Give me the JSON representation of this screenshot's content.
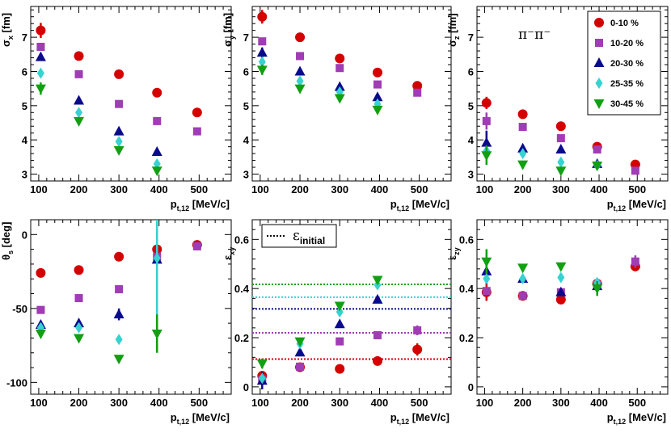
{
  "colors": {
    "0-10 %": "#d40000",
    "10-20 %": "#a03cb4",
    "20-30 %": "#0a0a8c",
    "25-35 %": "#37d2d2",
    "30-45 %": "#12a012"
  },
  "markers": {
    "0-10 %": "circle",
    "10-20 %": "square",
    "20-30 %": "triangle-up",
    "25-35 %": "diamond",
    "30-45 %": "triangle-down"
  },
  "legend": [
    "0-10 %",
    "10-20 %",
    "20-30 %",
    "25-35 %",
    "30-45 %"
  ],
  "annotation": "π⁻π⁻",
  "initial_legend": {
    "symbol": "ε",
    "sub": "initial"
  },
  "chart_data": [
    {
      "type": "scatter",
      "panel": "sigma_x",
      "ylabel": {
        "main": "σ",
        "sub": "x",
        "post": " [fm]"
      },
      "xlabel": {
        "main": "p",
        "sub": "t,12",
        "post": " [MeV/c]"
      },
      "xlim": [
        80,
        580
      ],
      "ylim": [
        2.8,
        7.9
      ],
      "xticks": [
        100,
        200,
        300,
        400,
        500
      ],
      "yticks": [
        3,
        4,
        5,
        6,
        7
      ],
      "series": [
        {
          "name": "0-10 %",
          "x": [
            105,
            200,
            300,
            395,
            495
          ],
          "y": [
            7.2,
            6.45,
            5.92,
            5.38,
            4.8
          ],
          "err": [
            0.22,
            0.0,
            0.0,
            0.0,
            0.0
          ]
        },
        {
          "name": "10-20 %",
          "x": [
            105,
            200,
            300,
            395,
            495
          ],
          "y": [
            6.72,
            5.92,
            5.05,
            4.55,
            4.25
          ],
          "err": [
            0.0,
            0.0,
            0.0,
            0.0,
            0.0
          ]
        },
        {
          "name": "20-30 %",
          "x": [
            105,
            200,
            300,
            395
          ],
          "y": [
            6.42,
            5.15,
            4.25,
            3.65
          ],
          "err": [
            0.0,
            0.0,
            0.0,
            0.0
          ]
        },
        {
          "name": "25-35 %",
          "x": [
            105,
            200,
            300,
            395
          ],
          "y": [
            5.95,
            4.8,
            3.95,
            3.3
          ],
          "err": [
            0.0,
            0.0,
            0.0,
            0.0
          ]
        },
        {
          "name": "30-45 %",
          "x": [
            105,
            200,
            300,
            395
          ],
          "y": [
            5.5,
            4.55,
            3.7,
            3.1
          ],
          "err": [
            0.18,
            0.0,
            0.0,
            0.12
          ]
        }
      ]
    },
    {
      "type": "scatter",
      "panel": "sigma_y",
      "ylabel": {
        "main": "σ",
        "sub": "y",
        "post": " [fm]"
      },
      "xlabel": {
        "main": "p",
        "sub": "t,12",
        "post": " [MeV/c]"
      },
      "xlim": [
        80,
        580
      ],
      "ylim": [
        2.8,
        7.9
      ],
      "xticks": [
        100,
        200,
        300,
        400,
        500
      ],
      "yticks": [
        3,
        4,
        5,
        6,
        7
      ],
      "series": [
        {
          "name": "0-10 %",
          "x": [
            105,
            200,
            300,
            395,
            495
          ],
          "y": [
            7.6,
            7.0,
            6.38,
            5.97,
            5.58
          ],
          "err": [
            0.2,
            0.0,
            0.0,
            0.0,
            0.0
          ]
        },
        {
          "name": "10-20 %",
          "x": [
            105,
            200,
            300,
            395,
            495
          ],
          "y": [
            6.88,
            6.45,
            6.1,
            5.62,
            5.38
          ],
          "err": [
            0.0,
            0.0,
            0.0,
            0.0,
            0.0
          ]
        },
        {
          "name": "20-30 %",
          "x": [
            105,
            200,
            300,
            395
          ],
          "y": [
            6.55,
            6.0,
            5.55,
            5.25
          ],
          "err": [
            0.15,
            0.0,
            0.0,
            0.0
          ]
        },
        {
          "name": "25-35 %",
          "x": [
            105,
            200,
            300,
            395
          ],
          "y": [
            6.28,
            5.72,
            5.4,
            5.05
          ],
          "err": [
            0.0,
            0.0,
            0.0,
            0.0
          ]
        },
        {
          "name": "30-45 %",
          "x": [
            105,
            200,
            300,
            395
          ],
          "y": [
            6.05,
            5.5,
            5.22,
            4.88
          ],
          "err": [
            0.15,
            0.0,
            0.0,
            0.0
          ]
        }
      ]
    },
    {
      "type": "scatter",
      "panel": "sigma_z",
      "ylabel": {
        "main": "σ",
        "sub": "z",
        "post": " [fm]"
      },
      "xlabel": {
        "main": "p",
        "sub": "t,12",
        "post": " [MeV/c]"
      },
      "xlim": [
        80,
        580
      ],
      "ylim": [
        2.8,
        7.9
      ],
      "xticks": [
        100,
        200,
        300,
        400,
        500
      ],
      "yticks": [
        3,
        4,
        5,
        6,
        7
      ],
      "series": [
        {
          "name": "0-10 %",
          "x": [
            105,
            200,
            300,
            395,
            495
          ],
          "y": [
            5.08,
            4.75,
            4.4,
            3.8,
            3.28
          ],
          "err": [
            0.18,
            0.0,
            0.0,
            0.0,
            0.0
          ]
        },
        {
          "name": "10-20 %",
          "x": [
            105,
            200,
            300,
            395,
            495
          ],
          "y": [
            4.55,
            4.38,
            4.05,
            3.72,
            3.1
          ],
          "err": [
            0.25,
            0.0,
            0.0,
            0.0,
            0.0
          ]
        },
        {
          "name": "20-30 %",
          "x": [
            105,
            200,
            300,
            395
          ],
          "y": [
            3.92,
            3.75,
            3.72,
            3.3
          ],
          "err": [
            0.35,
            0.0,
            0.0,
            0.0
          ]
        },
        {
          "name": "25-35 %",
          "x": [
            105,
            200,
            300,
            395
          ],
          "y": [
            3.68,
            3.6,
            3.35,
            3.25
          ],
          "err": [
            0.0,
            0.0,
            0.0,
            0.0
          ]
        },
        {
          "name": "30-45 %",
          "x": [
            105,
            200,
            300,
            395
          ],
          "y": [
            3.55,
            3.28,
            3.1,
            3.25
          ],
          "err": [
            0.28,
            0.0,
            0.0,
            0.0
          ]
        }
      ]
    },
    {
      "type": "scatter",
      "panel": "theta_s",
      "ylabel": {
        "main": "θ",
        "sub": "s",
        "post": " [deg]"
      },
      "xlabel": {
        "main": "p",
        "sub": "t,12",
        "post": " [MeV/c]"
      },
      "xlim": [
        80,
        580
      ],
      "ylim": [
        -108,
        10
      ],
      "xticks": [
        100,
        200,
        300,
        400,
        500
      ],
      "yticks": [
        -100,
        -50,
        0
      ],
      "series": [
        {
          "name": "0-10 %",
          "x": [
            105,
            200,
            300,
            395,
            495
          ],
          "y": [
            -26,
            -24,
            -15,
            -10,
            -7
          ],
          "err": [
            0.0,
            0.0,
            0.0,
            0.0,
            0.0
          ]
        },
        {
          "name": "10-20 %",
          "x": [
            105,
            200,
            300,
            395,
            495
          ],
          "y": [
            -51,
            -43,
            -37,
            -15,
            -8
          ],
          "err": [
            0.0,
            0.0,
            0.0,
            0.0,
            0.0
          ]
        },
        {
          "name": "20-30 %",
          "x": [
            105,
            200,
            300,
            395
          ],
          "y": [
            -61,
            -60,
            -54,
            -17
          ],
          "err": [
            0.0,
            0.0,
            4.0,
            0.0
          ]
        },
        {
          "name": "25-35 %",
          "x": [
            105,
            200,
            300,
            395
          ],
          "y": [
            -63,
            -63,
            -71,
            -16
          ],
          "err": [
            0.0,
            0.0,
            0.0,
            45.0
          ]
        },
        {
          "name": "30-45 %",
          "x": [
            105,
            200,
            300,
            395
          ],
          "y": [
            -67,
            -70,
            -84,
            -67
          ],
          "err": [
            0.0,
            0.0,
            0.0,
            13.0
          ]
        }
      ]
    },
    {
      "type": "scatter",
      "panel": "epsilon_xy",
      "ylabel": {
        "main": "ε",
        "sub": "xy",
        "post": ""
      },
      "xlabel": {
        "main": "p",
        "sub": "t,12",
        "post": " [MeV/c]"
      },
      "xlim": [
        80,
        580
      ],
      "ylim": [
        -0.03,
        0.68
      ],
      "xticks": [
        100,
        200,
        300,
        400,
        500
      ],
      "yticks": [
        0,
        0.2,
        0.4,
        0.6
      ],
      "ylabels": [
        "0",
        "0.2",
        "0.4",
        "0.6"
      ],
      "initial": [
        {
          "name": "0-10 %",
          "y": 0.113
        },
        {
          "name": "10-20 %",
          "y": 0.22
        },
        {
          "name": "20-30 %",
          "y": 0.317
        },
        {
          "name": "25-35 %",
          "y": 0.365
        },
        {
          "name": "30-45 %",
          "y": 0.417
        }
      ],
      "series": [
        {
          "name": "0-10 %",
          "x": [
            105,
            200,
            300,
            395,
            495
          ],
          "y": [
            0.045,
            0.08,
            0.073,
            0.105,
            0.152
          ],
          "err": [
            0.02,
            0.0,
            0.0,
            0.015,
            0.025
          ]
        },
        {
          "name": "10-20 %",
          "x": [
            105,
            200,
            300,
            395,
            495
          ],
          "y": [
            0.03,
            0.082,
            0.185,
            0.21,
            0.23
          ],
          "err": [
            0.0,
            0.0,
            0.0,
            0.0,
            0.02
          ]
        },
        {
          "name": "20-30 %",
          "x": [
            105,
            200,
            300,
            395
          ],
          "y": [
            0.025,
            0.14,
            0.255,
            0.355
          ],
          "err": [
            0.035,
            0.0,
            0.0,
            0.0
          ]
        },
        {
          "name": "25-35 %",
          "x": [
            105,
            200,
            300,
            395
          ],
          "y": [
            0.035,
            0.175,
            0.305,
            0.415
          ],
          "err": [
            0.0,
            0.0,
            0.0,
            0.0
          ]
        },
        {
          "name": "30-45 %",
          "x": [
            105,
            200,
            300,
            395
          ],
          "y": [
            0.095,
            0.185,
            0.33,
            0.435
          ],
          "err": [
            0.02,
            0.0,
            0.0,
            0.0
          ]
        }
      ]
    },
    {
      "type": "scatter",
      "panel": "epsilon_zy",
      "ylabel": {
        "main": "ε",
        "sub": "zy",
        "post": ""
      },
      "xlabel": {
        "main": "p",
        "sub": "t,12",
        "post": " [MeV/c]"
      },
      "xlim": [
        80,
        580
      ],
      "ylim": [
        -0.03,
        0.68
      ],
      "xticks": [
        100,
        200,
        300,
        400,
        500
      ],
      "yticks": [
        0,
        0.2,
        0.4,
        0.6
      ],
      "ylabels": [
        "0",
        "0.2",
        "0.4",
        "0.6"
      ],
      "series": [
        {
          "name": "0-10 %",
          "x": [
            105,
            200,
            300,
            395,
            495
          ],
          "y": [
            0.385,
            0.37,
            0.355,
            0.42,
            0.49
          ],
          "err": [
            0.035,
            0.0,
            0.0,
            0.0,
            0.02
          ]
        },
        {
          "name": "10-20 %",
          "x": [
            105,
            200,
            300,
            395,
            495
          ],
          "y": [
            0.39,
            0.37,
            0.385,
            0.415,
            0.51
          ],
          "err": [
            0.0,
            0.0,
            0.0,
            0.0,
            0.025
          ]
        },
        {
          "name": "20-30 %",
          "x": [
            105,
            200,
            300,
            395
          ],
          "y": [
            0.47,
            0.44,
            0.385,
            0.41
          ],
          "err": [
            0.05,
            0.0,
            0.0,
            0.0
          ]
        },
        {
          "name": "25-35 %",
          "x": [
            105,
            200,
            300,
            395
          ],
          "y": [
            0.44,
            0.44,
            0.445,
            0.425
          ],
          "err": [
            0.0,
            0.0,
            0.0,
            0.0
          ]
        },
        {
          "name": "30-45 %",
          "x": [
            105,
            200,
            300,
            395
          ],
          "y": [
            0.51,
            0.485,
            0.49,
            0.4
          ],
          "err": [
            0.05,
            0.0,
            0.0,
            0.03
          ]
        }
      ]
    }
  ]
}
